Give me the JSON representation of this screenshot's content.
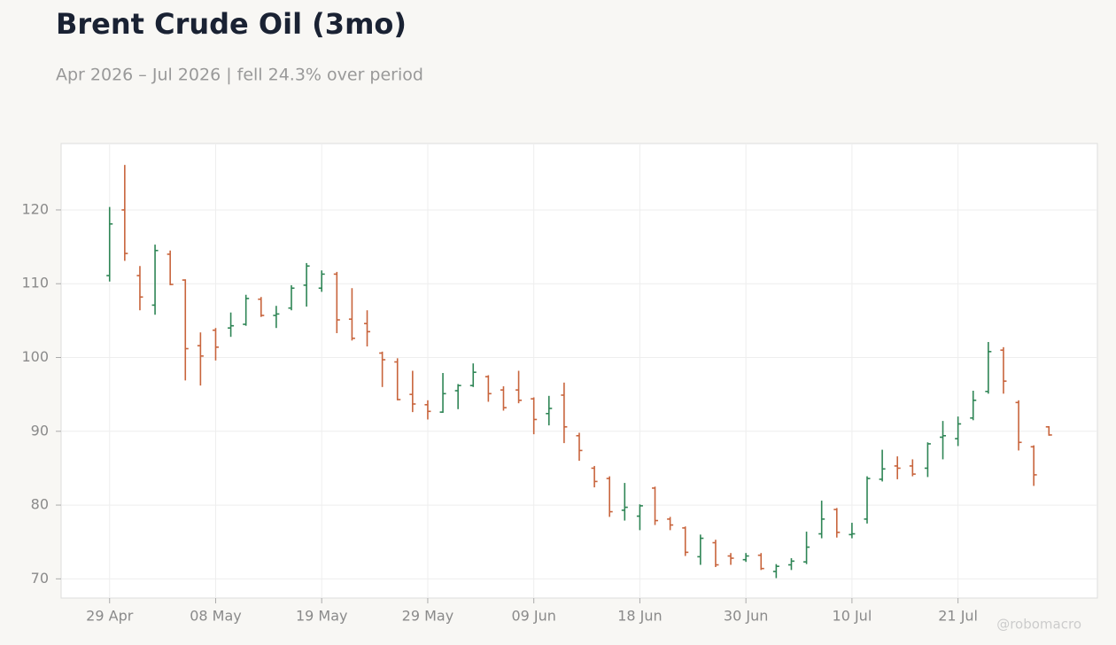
{
  "chart_data": {
    "type": "ohlc",
    "title": "Brent Crude Oil (3mo)",
    "subtitle": "Apr 2026 – Jul 2026 | fell 24.3% over period",
    "watermark": "@robomacro",
    "categories": [
      "29 Apr",
      null,
      null,
      null,
      null,
      null,
      null,
      "08 May",
      null,
      null,
      null,
      null,
      null,
      null,
      "19 May",
      null,
      null,
      null,
      null,
      null,
      null,
      "29 May",
      null,
      null,
      null,
      null,
      null,
      null,
      "09 Jun",
      null,
      null,
      null,
      null,
      null,
      null,
      "18 Jun",
      null,
      null,
      null,
      null,
      null,
      null,
      "30 Jun",
      null,
      null,
      null,
      null,
      null,
      null,
      "10 Jul",
      null,
      null,
      null,
      null,
      null,
      null,
      "21 Jul",
      null,
      null,
      null,
      null,
      null,
      null
    ],
    "open": [
      111.1,
      120.0,
      111.1,
      107.1,
      114.0,
      110.5,
      101.6,
      103.7,
      104.0,
      104.5,
      107.9,
      105.7,
      106.7,
      109.8,
      109.4,
      111.3,
      105.2,
      104.6,
      100.6,
      99.4,
      95.0,
      93.6,
      92.6,
      95.5,
      96.2,
      97.4,
      95.6,
      95.6,
      94.4,
      92.4,
      94.9,
      89.4,
      85.0,
      83.6,
      79.3,
      78.5,
      82.3,
      78.1,
      76.9,
      73.0,
      74.9,
      73.1,
      72.6,
      73.2,
      71.0,
      71.9,
      72.3,
      76.1,
      79.4,
      76.0,
      78.1,
      83.5,
      85.3,
      85.3,
      85.0,
      89.2,
      89.0,
      91.8,
      95.4,
      101.0,
      93.9,
      87.9,
      90.6
    ],
    "high": [
      120.4,
      126.1,
      112.4,
      115.3,
      114.5,
      110.6,
      103.4,
      104.0,
      106.1,
      108.5,
      108.2,
      107.0,
      109.8,
      112.8,
      111.8,
      111.6,
      109.4,
      106.4,
      100.8,
      99.9,
      98.2,
      94.2,
      97.9,
      96.4,
      99.2,
      97.6,
      96.1,
      98.2,
      94.6,
      94.8,
      96.6,
      89.8,
      85.3,
      83.9,
      83.0,
      80.1,
      82.5,
      78.4,
      77.1,
      76.0,
      75.3,
      73.5,
      73.5,
      73.5,
      72.0,
      72.8,
      76.4,
      80.6,
      79.6,
      77.6,
      83.9,
      87.5,
      86.6,
      86.2,
      88.5,
      91.4,
      92.0,
      95.5,
      102.1,
      101.4,
      94.2,
      88.1,
      90.7
    ],
    "low": [
      110.3,
      113.1,
      106.4,
      105.8,
      109.8,
      96.9,
      96.2,
      99.6,
      102.8,
      104.3,
      105.5,
      104.0,
      106.4,
      106.9,
      108.9,
      103.3,
      102.3,
      101.5,
      96.0,
      94.2,
      92.6,
      91.6,
      92.5,
      93.0,
      96.0,
      94.0,
      92.8,
      93.8,
      89.6,
      90.8,
      88.4,
      86.0,
      82.4,
      78.4,
      77.9,
      76.6,
      77.3,
      76.6,
      73.1,
      71.9,
      71.6,
      71.9,
      72.3,
      71.2,
      70.1,
      71.2,
      72.0,
      75.5,
      75.6,
      75.5,
      77.5,
      83.2,
      83.5,
      83.9,
      83.8,
      86.2,
      88.0,
      91.5,
      95.1,
      95.1,
      87.4,
      82.6,
      89.4
    ],
    "close": [
      118.1,
      114.1,
      108.2,
      114.5,
      109.9,
      101.2,
      100.2,
      101.4,
      104.3,
      108.0,
      105.7,
      105.9,
      109.4,
      112.4,
      111.3,
      105.1,
      102.6,
      103.5,
      99.7,
      94.3,
      93.7,
      92.7,
      95.1,
      96.2,
      98.0,
      95.1,
      93.2,
      94.2,
      91.6,
      93.1,
      90.6,
      87.4,
      83.2,
      79.1,
      79.7,
      79.9,
      77.9,
      77.3,
      73.6,
      75.5,
      71.9,
      72.8,
      73.1,
      71.4,
      71.7,
      72.4,
      74.3,
      78.1,
      76.3,
      76.1,
      83.6,
      84.9,
      85.0,
      84.2,
      88.3,
      89.4,
      91.0,
      94.2,
      100.8,
      96.8,
      88.5,
      84.1,
      89.5
    ],
    "up_color": "#2e8555",
    "down_color": "#c8643c",
    "ylim": [
      67.4,
      129.0
    ],
    "yticks": [
      70,
      80,
      90,
      100,
      110,
      120
    ],
    "grid": true
  }
}
